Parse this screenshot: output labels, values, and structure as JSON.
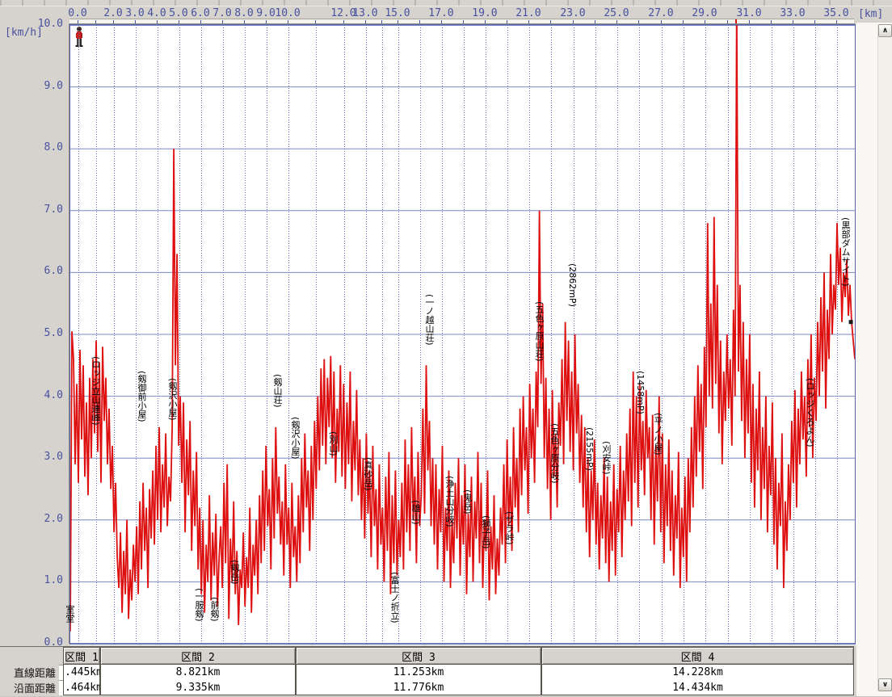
{
  "units": {
    "y_axis": "[km/h]",
    "x_axis": "[km]"
  },
  "colors": {
    "trace": "#dd0f0f",
    "grid_horizontal": "#7d89c4",
    "grid_vertical": "#6670b8",
    "axis_text": "#47519f",
    "background": "#d6d3ce",
    "plot_background": "#ffffff",
    "end_marker": "#1a1a1a"
  },
  "chart_data": {
    "type": "line",
    "title": "",
    "xlabel": "[km]",
    "ylabel": "[km/h]",
    "ylim": [
      0,
      10
    ],
    "grid": true,
    "legend_position": "none",
    "y_ticks": [
      "10.0",
      "9.0",
      "8.0",
      "7.0",
      "6.0",
      "5.0",
      "4.0",
      "3.0",
      "2.0",
      "1.0",
      "0.0"
    ],
    "x_ticks": [
      {
        "km": "0.0",
        "x": 0.0103,
        "labeled": true
      },
      {
        "km": "1.0",
        "x": 0.033,
        "labeled": false
      },
      {
        "km": "2.0",
        "x": 0.0556,
        "labeled": true
      },
      {
        "km": "3.0",
        "x": 0.0834,
        "labeled": true
      },
      {
        "km": "4.0",
        "x": 0.1112,
        "labeled": true
      },
      {
        "km": "5.0",
        "x": 0.139,
        "labeled": true
      },
      {
        "km": "6.0",
        "x": 0.1668,
        "labeled": true
      },
      {
        "km": "7.0",
        "x": 0.1946,
        "labeled": true
      },
      {
        "km": "8.0",
        "x": 0.2224,
        "labeled": true
      },
      {
        "km": "9.0",
        "x": 0.2503,
        "labeled": true
      },
      {
        "km": "10.0",
        "x": 0.2781,
        "labeled": true
      },
      {
        "km": "11.0",
        "x": 0.3131,
        "labeled": false
      },
      {
        "km": "12.0",
        "x": 0.3491,
        "labeled": true
      },
      {
        "km": "13.0",
        "x": 0.3769,
        "labeled": true
      },
      {
        "km": "14.0",
        "x": 0.3975,
        "labeled": false
      },
      {
        "km": "15.0",
        "x": 0.4181,
        "labeled": true
      },
      {
        "km": "16.0",
        "x": 0.4459,
        "labeled": false
      },
      {
        "km": "17.0",
        "x": 0.4737,
        "labeled": true
      },
      {
        "km": "18.0",
        "x": 0.5015,
        "labeled": false
      },
      {
        "km": "19.0",
        "x": 0.5293,
        "labeled": true
      },
      {
        "km": "20.0",
        "x": 0.5571,
        "labeled": false
      },
      {
        "km": "21.0",
        "x": 0.5849,
        "labeled": true
      },
      {
        "km": "22.0",
        "x": 0.6127,
        "labeled": false
      },
      {
        "km": "23.0",
        "x": 0.6416,
        "labeled": true
      },
      {
        "km": "24.0",
        "x": 0.6694,
        "labeled": false
      },
      {
        "km": "25.0",
        "x": 0.6972,
        "labeled": true
      },
      {
        "km": "26.0",
        "x": 0.725,
        "labeled": false
      },
      {
        "km": "27.0",
        "x": 0.7538,
        "labeled": true
      },
      {
        "km": "28.0",
        "x": 0.7816,
        "labeled": false
      },
      {
        "km": "29.0",
        "x": 0.8094,
        "labeled": true
      },
      {
        "km": "30.0",
        "x": 0.8383,
        "labeled": false
      },
      {
        "km": "31.0",
        "x": 0.8661,
        "labeled": true
      },
      {
        "km": "32.0",
        "x": 0.8939,
        "labeled": false
      },
      {
        "km": "33.0",
        "x": 0.9217,
        "labeled": true
      },
      {
        "km": "34.0",
        "x": 0.9495,
        "labeled": false
      },
      {
        "km": "35.0",
        "x": 0.9773,
        "labeled": true
      }
    ],
    "waypoints": [
      {
        "x": 0.0,
        "y": 718,
        "label": "室堂"
      },
      {
        "x": 0.033,
        "y": 410,
        "label": "(ロッジ立山連峰)"
      },
      {
        "x": 0.0917,
        "y": 428,
        "label": "(剱御前小屋)"
      },
      {
        "x": 0.1308,
        "y": 437,
        "label": "(剱沢小屋)"
      },
      {
        "x": 0.1648,
        "y": 697,
        "label": "(一服剱)"
      },
      {
        "x": 0.1843,
        "y": 708,
        "label": "(前剱)"
      },
      {
        "x": 0.2101,
        "y": 662,
        "label": "(剱岳)"
      },
      {
        "x": 0.2647,
        "y": 432,
        "label": "(剱山荘)"
      },
      {
        "x": 0.2873,
        "y": 485,
        "label": "(剱沢小屋)"
      },
      {
        "x": 0.3357,
        "y": 503,
        "label": "(別山)"
      },
      {
        "x": 0.38,
        "y": 535,
        "label": "(真砂岳)"
      },
      {
        "x": 0.414,
        "y": 677,
        "label": "(富士ノ折立)"
      },
      {
        "x": 0.4408,
        "y": 588,
        "label": "(雄山)"
      },
      {
        "x": 0.4583,
        "y": 333,
        "label": "(一ノ越山荘)"
      },
      {
        "x": 0.484,
        "y": 558,
        "label": "(浄土山分岐)"
      },
      {
        "x": 0.5067,
        "y": 575,
        "label": "(鬼岳)"
      },
      {
        "x": 0.5304,
        "y": 607,
        "label": "(獅子岳)"
      },
      {
        "x": 0.5603,
        "y": 602,
        "label": "(ザラ峠)"
      },
      {
        "x": 0.5983,
        "y": 342,
        "label": "(五色ヶ原山荘)"
      },
      {
        "x": 0.6179,
        "y": 493,
        "label": "(五色ヶ原分岐)"
      },
      {
        "x": 0.6405,
        "y": 295,
        "label": "(2862mP)"
      },
      {
        "x": 0.6622,
        "y": 498,
        "label": "(2155mP)"
      },
      {
        "x": 0.6838,
        "y": 515,
        "label": "(刈安峠)"
      },
      {
        "x": 0.7271,
        "y": 428,
        "label": "(1458mP)"
      },
      {
        "x": 0.7497,
        "y": 480,
        "label": "(平ノ小屋)"
      },
      {
        "x": 0.9434,
        "y": 437,
        "label": "(ロッジくろよん)"
      },
      {
        "x": 0.9887,
        "y": 238,
        "label": "(黒部ダムサイト)"
      }
    ],
    "end_marker": {
      "x": 0.995,
      "value": 5.2
    },
    "speed_values": [
      0.2,
      5.05,
      4.6,
      2.9,
      4.2,
      2.6,
      4.75,
      3.3,
      4.5,
      2.7,
      3.9,
      2.4,
      4.3,
      3.0,
      4.6,
      3.4,
      4.9,
      3.1,
      4.55,
      2.6,
      4.8,
      3.6,
      4.3,
      2.9,
      3.8,
      2.5,
      3.2,
      1.8,
      2.6,
      1.4,
      0.9,
      1.8,
      0.5,
      1.5,
      0.8,
      2.0,
      0.4,
      1.2,
      0.7,
      1.6,
      1.0,
      1.9,
      0.8,
      2.3,
      1.2,
      2.6,
      1.5,
      2.2,
      0.9,
      2.5,
      1.7,
      2.8,
      1.6,
      3.2,
      2.0,
      3.5,
      1.8,
      2.9,
      2.2,
      3.4,
      1.9,
      2.7,
      2.3,
      3.5,
      8.0,
      4.5,
      6.3,
      3.2,
      4.0,
      2.6,
      3.9,
      1.8,
      3.3,
      2.4,
      3.6,
      1.5,
      2.8,
      1.9,
      3.1,
      1.2,
      2.2,
      0.8,
      2.0,
      0.5,
      1.6,
      1.0,
      2.4,
      0.7,
      1.8,
      1.1,
      2.1,
      0.6,
      1.4,
      1.9,
      0.9,
      2.6,
      1.3,
      2.9,
      0.4,
      1.7,
      1.0,
      2.3,
      0.8,
      1.5,
      0.3,
      1.2,
      0.9,
      1.8,
      0.6,
      1.4,
      0.9,
      2.2,
      0.5,
      1.6,
      1.1,
      2.0,
      0.8,
      2.4,
      1.3,
      2.8,
      1.5,
      3.2,
      1.9,
      2.5,
      1.2,
      3.0,
      1.7,
      3.5,
      2.1,
      2.7,
      1.6,
      2.3,
      1.1,
      2.9,
      1.6,
      2.2,
      0.9,
      2.6,
      1.4,
      1.9,
      1.0,
      2.4,
      1.3,
      3.0,
      1.8,
      3.4,
      2.2,
      2.8,
      1.5,
      3.2,
      2.0,
      3.6,
      2.5,
      4.0,
      2.8,
      4.45,
      3.2,
      4.6,
      2.9,
      4.3,
      3.5,
      4.65,
      3.0,
      4.4,
      2.6,
      3.8,
      3.1,
      4.5,
      2.7,
      4.2,
      2.5,
      3.9,
      2.9,
      4.4,
      2.3,
      3.6,
      2.8,
      4.1,
      2.4,
      3.3,
      2.0,
      3.0,
      1.7,
      3.4,
      2.1,
      2.8,
      1.4,
      3.2,
      1.9,
      2.5,
      1.2,
      2.9,
      1.6,
      2.2,
      1.0,
      2.7,
      1.5,
      3.1,
      0.8,
      2.4,
      1.3,
      2.8,
      1.1,
      2.0,
      1.4,
      2.6,
      1.2,
      3.3,
      1.8,
      2.9,
      1.5,
      3.5,
      2.0,
      2.7,
      1.3,
      3.1,
      1.9,
      2.4,
      3.8,
      2.1,
      4.5,
      2.8,
      3.6,
      1.9,
      3.0,
      1.6,
      2.9,
      1.2,
      2.5,
      1.8,
      3.2,
      1.0,
      2.2,
      1.5,
      2.8,
      0.9,
      2.0,
      1.3,
      2.6,
      1.7,
      3.0,
      1.1,
      2.4,
      1.6,
      2.9,
      0.8,
      2.1,
      1.4,
      2.7,
      1.0,
      2.3,
      1.7,
      3.1,
      1.3,
      2.6,
      0.9,
      2.0,
      1.5,
      2.8,
      0.7,
      1.9,
      1.2,
      2.4,
      0.8,
      1.7,
      1.1,
      2.2,
      1.6,
      2.9,
      1.3,
      3.3,
      1.9,
      2.7,
      1.5,
      3.5,
      2.2,
      3.0,
      1.8,
      3.8,
      2.4,
      4.0,
      2.8,
      3.5,
      2.1,
      4.2,
      3.0,
      3.8,
      2.6,
      4.4,
      3.5,
      7.0,
      4.2,
      5.5,
      3.0,
      4.3,
      2.5,
      3.8,
      2.0,
      4.1,
      2.7,
      3.4,
      2.2,
      3.9,
      3.2,
      4.6,
      2.9,
      5.2,
      3.6,
      4.9,
      3.1,
      4.4,
      2.8,
      5.0,
      3.4,
      4.2,
      2.6,
      3.7,
      2.2,
      3.5,
      1.8,
      3.0,
      1.4,
      2.8,
      2.0,
      3.3,
      1.6,
      2.6,
      1.2,
      2.4,
      1.7,
      3.0,
      1.3,
      2.7,
      1.0,
      2.3,
      1.5,
      2.9,
      1.1,
      2.5,
      1.8,
      3.2,
      1.4,
      2.8,
      2.0,
      3.4,
      2.3,
      3.8,
      1.9,
      4.4,
      2.6,
      4.0,
      2.2,
      4.2,
      2.8,
      3.6,
      2.4,
      4.1,
      3.0,
      3.5,
      2.0,
      3.7,
      1.6,
      3.2,
      2.3,
      4.0,
      1.8,
      3.4,
      1.3,
      2.9,
      1.9,
      3.3,
      1.5,
      2.8,
      1.1,
      2.4,
      1.7,
      3.1,
      0.9,
      2.2,
      1.4,
      2.7,
      1.0,
      3.0,
      1.8,
      3.5,
      2.2,
      4.0,
      2.7,
      4.5,
      3.1,
      4.2,
      2.5,
      4.8,
      3.5,
      6.8,
      4.0,
      5.5,
      3.8,
      6.9,
      4.2,
      5.8,
      3.4,
      4.9,
      2.9,
      4.4,
      3.6,
      5.0,
      3.8,
      4.6,
      3.2,
      5.4,
      4.0,
      10.4,
      4.4,
      5.8,
      3.6,
      5.2,
      3.0,
      4.6,
      3.4,
      5.0,
      2.6,
      4.2,
      2.2,
      3.8,
      2.8,
      4.4,
      2.0,
      3.5,
      2.5,
      4.0,
      1.8,
      3.2,
      2.4,
      3.9,
      1.6,
      3.0,
      1.2,
      2.6,
      1.9,
      3.4,
      0.9,
      2.3,
      1.5,
      2.9,
      2.0,
      3.6,
      2.6,
      4.1,
      2.2,
      3.8,
      2.9,
      4.4,
      3.3,
      4.0,
      2.7,
      4.6,
      3.5,
      5.0,
      3.0,
      4.3,
      3.6,
      5.2,
      4.0,
      5.6,
      4.4,
      6.0,
      3.8,
      5.4,
      4.6,
      6.3,
      5.0,
      5.8,
      5.4,
      6.8,
      5.8,
      6.4,
      5.2,
      6.0,
      5.6,
      6.2,
      5.3,
      5.8,
      5.2,
      4.9,
      4.6
    ]
  },
  "table": {
    "row_headers": [
      "直線距離",
      "沿面距離"
    ],
    "columns": [
      {
        "header": "区間 1",
        "values": [
          ".445km",
          ".464km"
        ]
      },
      {
        "header": "区間 2",
        "values": [
          "8.821km",
          "9.335km"
        ]
      },
      {
        "header": "区間 3",
        "values": [
          "11.253km",
          "11.776km"
        ]
      },
      {
        "header": "区間 4",
        "values": [
          "14.228km",
          "14.434km"
        ]
      }
    ]
  },
  "scrollbar": {
    "up_arrow": "∧",
    "down_arrow": "∨"
  }
}
